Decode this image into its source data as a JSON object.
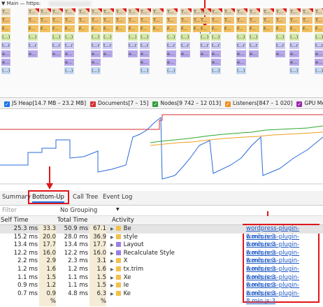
{
  "flame": {
    "thread": "Main — https:",
    "rows": [
      "T...",
      "T...",
      "F...",
      "(...)",
      "t...r",
      "e...",
      "e...",
      "(...)"
    ]
  },
  "counters": [
    "JS Heap[14.7 MB – 23.2 MB]",
    "Documents[7 – 15]",
    "Nodes[9 742 – 12 013]",
    "Listeners[847 – 1 020]",
    "GPU Memory"
  ],
  "tabs": [
    "Summary",
    "Bottom-Up",
    "Call Tree",
    "Event Log"
  ],
  "toolbar": {
    "filter": "Filter",
    "grouping": "No Grouping"
  },
  "table": {
    "headers": [
      "Self Time",
      "Total Time",
      "Activity"
    ],
    "rows": [
      [
        "25.3 ms",
        "33.3 %",
        "50.9 ms",
        "67.1 %",
        "Be",
        "wordpress-plugin-8.min.js:3"
      ],
      [
        "15.2 ms",
        "20.0 %",
        "28.0 ms",
        "36.9 %",
        "style",
        "wordpress-plugin-8.min.js:3"
      ],
      [
        "13.4 ms",
        "17.7 %",
        "13.4 ms",
        "17.7 %",
        "Layout",
        "wordpress-plugin-8.min.js:3"
      ],
      [
        "12.2 ms",
        "16.0 %",
        "12.2 ms",
        "16.0 %",
        "Recalculate Style",
        "wordpress-plugin-8.min.js:3"
      ],
      [
        "2.2 ms",
        "2.9 %",
        "2.3 ms",
        "3.1 %",
        "X",
        "wordpress-plugin-8.min.js:3"
      ],
      [
        "1.2 ms",
        "1.6 %",
        "1.2 ms",
        "1.6 %",
        "tx.trim",
        "wordpress-plugin-8.min.js:3"
      ],
      [
        "1.1 ms",
        "1.5 %",
        "1.1 ms",
        "1.5 %",
        "Xe",
        "wordpress-plugin-8.min.js:3"
      ],
      [
        "0.9 ms",
        "1.2 %",
        "1.1 ms",
        "1.5 %",
        "Ie",
        "wordpress-plugin-8.min.js:3"
      ],
      [
        "0.7 ms",
        "0.9 %",
        "4.8 ms",
        "6.3 %",
        "Ke",
        "wordpress-plugin-8.min.js:3"
      ]
    ]
  }
}
